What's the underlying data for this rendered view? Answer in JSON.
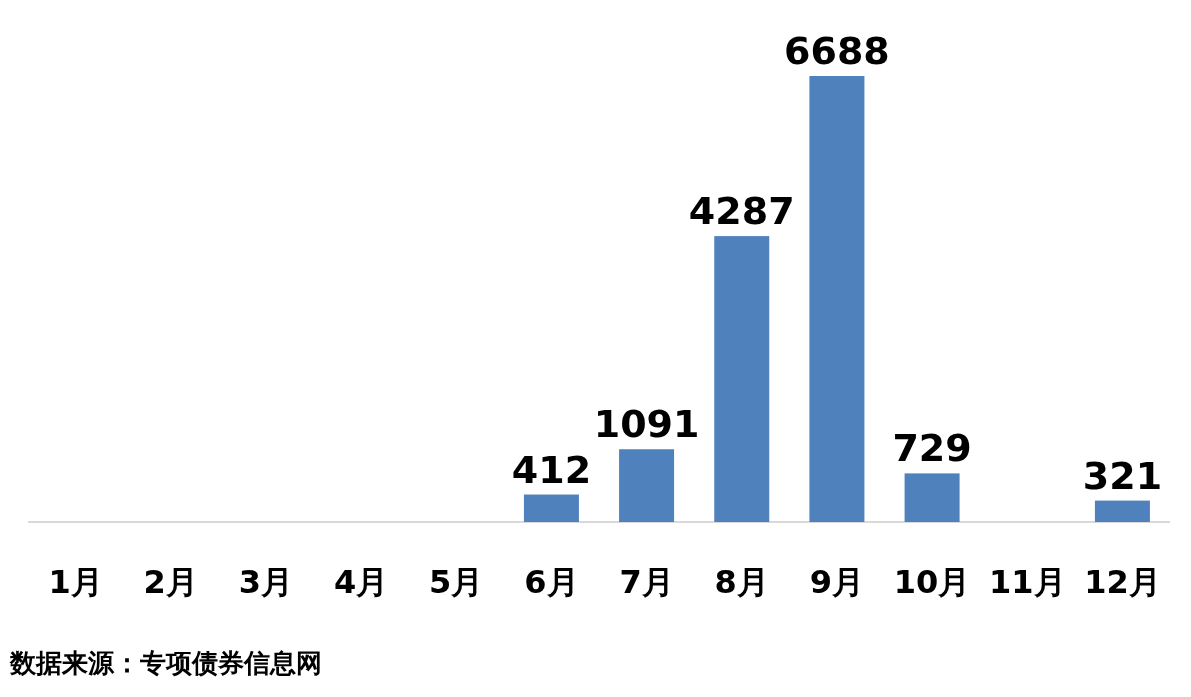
{
  "chart_data": {
    "type": "bar",
    "categories": [
      "1月",
      "2月",
      "3月",
      "4月",
      "5月",
      "6月",
      "7月",
      "8月",
      "9月",
      "10月",
      "11月",
      "12月"
    ],
    "values": [
      null,
      null,
      null,
      null,
      null,
      412,
      1091,
      4287,
      6688,
      729,
      null,
      321
    ],
    "color": "#4f81bd",
    "data_labels": true,
    "annotations": [
      "数据来源：专项债券信息网"
    ]
  }
}
